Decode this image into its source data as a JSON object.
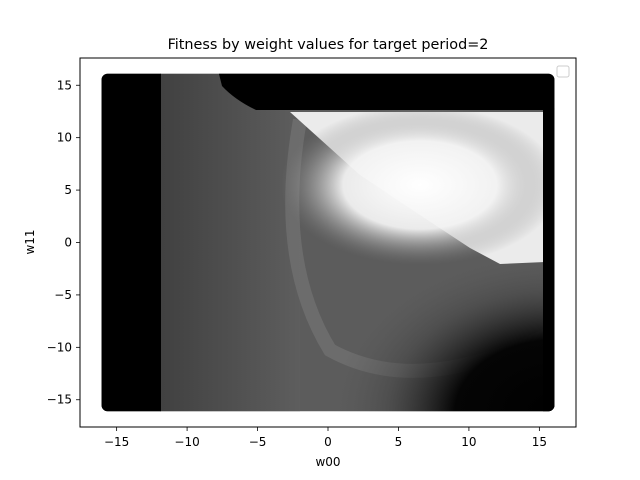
{
  "chart_data": {
    "type": "heatmap",
    "title": "Fitness by weight values for target period=2",
    "xlabel": "w00",
    "ylabel": "w11",
    "xlim": [
      -17.6,
      17.6
    ],
    "ylim": [
      -17.6,
      17.6
    ],
    "x_ticks": [
      -15,
      -10,
      -5,
      0,
      5,
      10,
      15
    ],
    "y_ticks": [
      -15,
      -10,
      -5,
      0,
      5,
      10,
      15
    ],
    "x_tick_labels": [
      "−15",
      "−10",
      "−5",
      "0",
      "5",
      "10",
      "15"
    ],
    "y_tick_labels": [
      "−15",
      "−10",
      "−5",
      "0",
      "5",
      "10",
      "15"
    ],
    "data_extent": {
      "w00": [
        -16,
        16
      ],
      "w11": [
        -16,
        16
      ]
    },
    "colormap": "grayscale",
    "grid": false,
    "legend": {
      "placement": "top-right",
      "entries": []
    },
    "regions": [
      {
        "description": "black band",
        "w00": [
          -16,
          -12
        ],
        "w11": [
          -16,
          16
        ],
        "fitness": 0
      },
      {
        "description": "black band top",
        "w00": [
          -7.5,
          16
        ],
        "w11": [
          12.5,
          16
        ],
        "fitness": 0
      },
      {
        "description": "white peak",
        "w00_center": 7,
        "w11_center": 4,
        "fitness": 1
      },
      {
        "description": "gray background",
        "fitness": 0.38
      }
    ]
  }
}
